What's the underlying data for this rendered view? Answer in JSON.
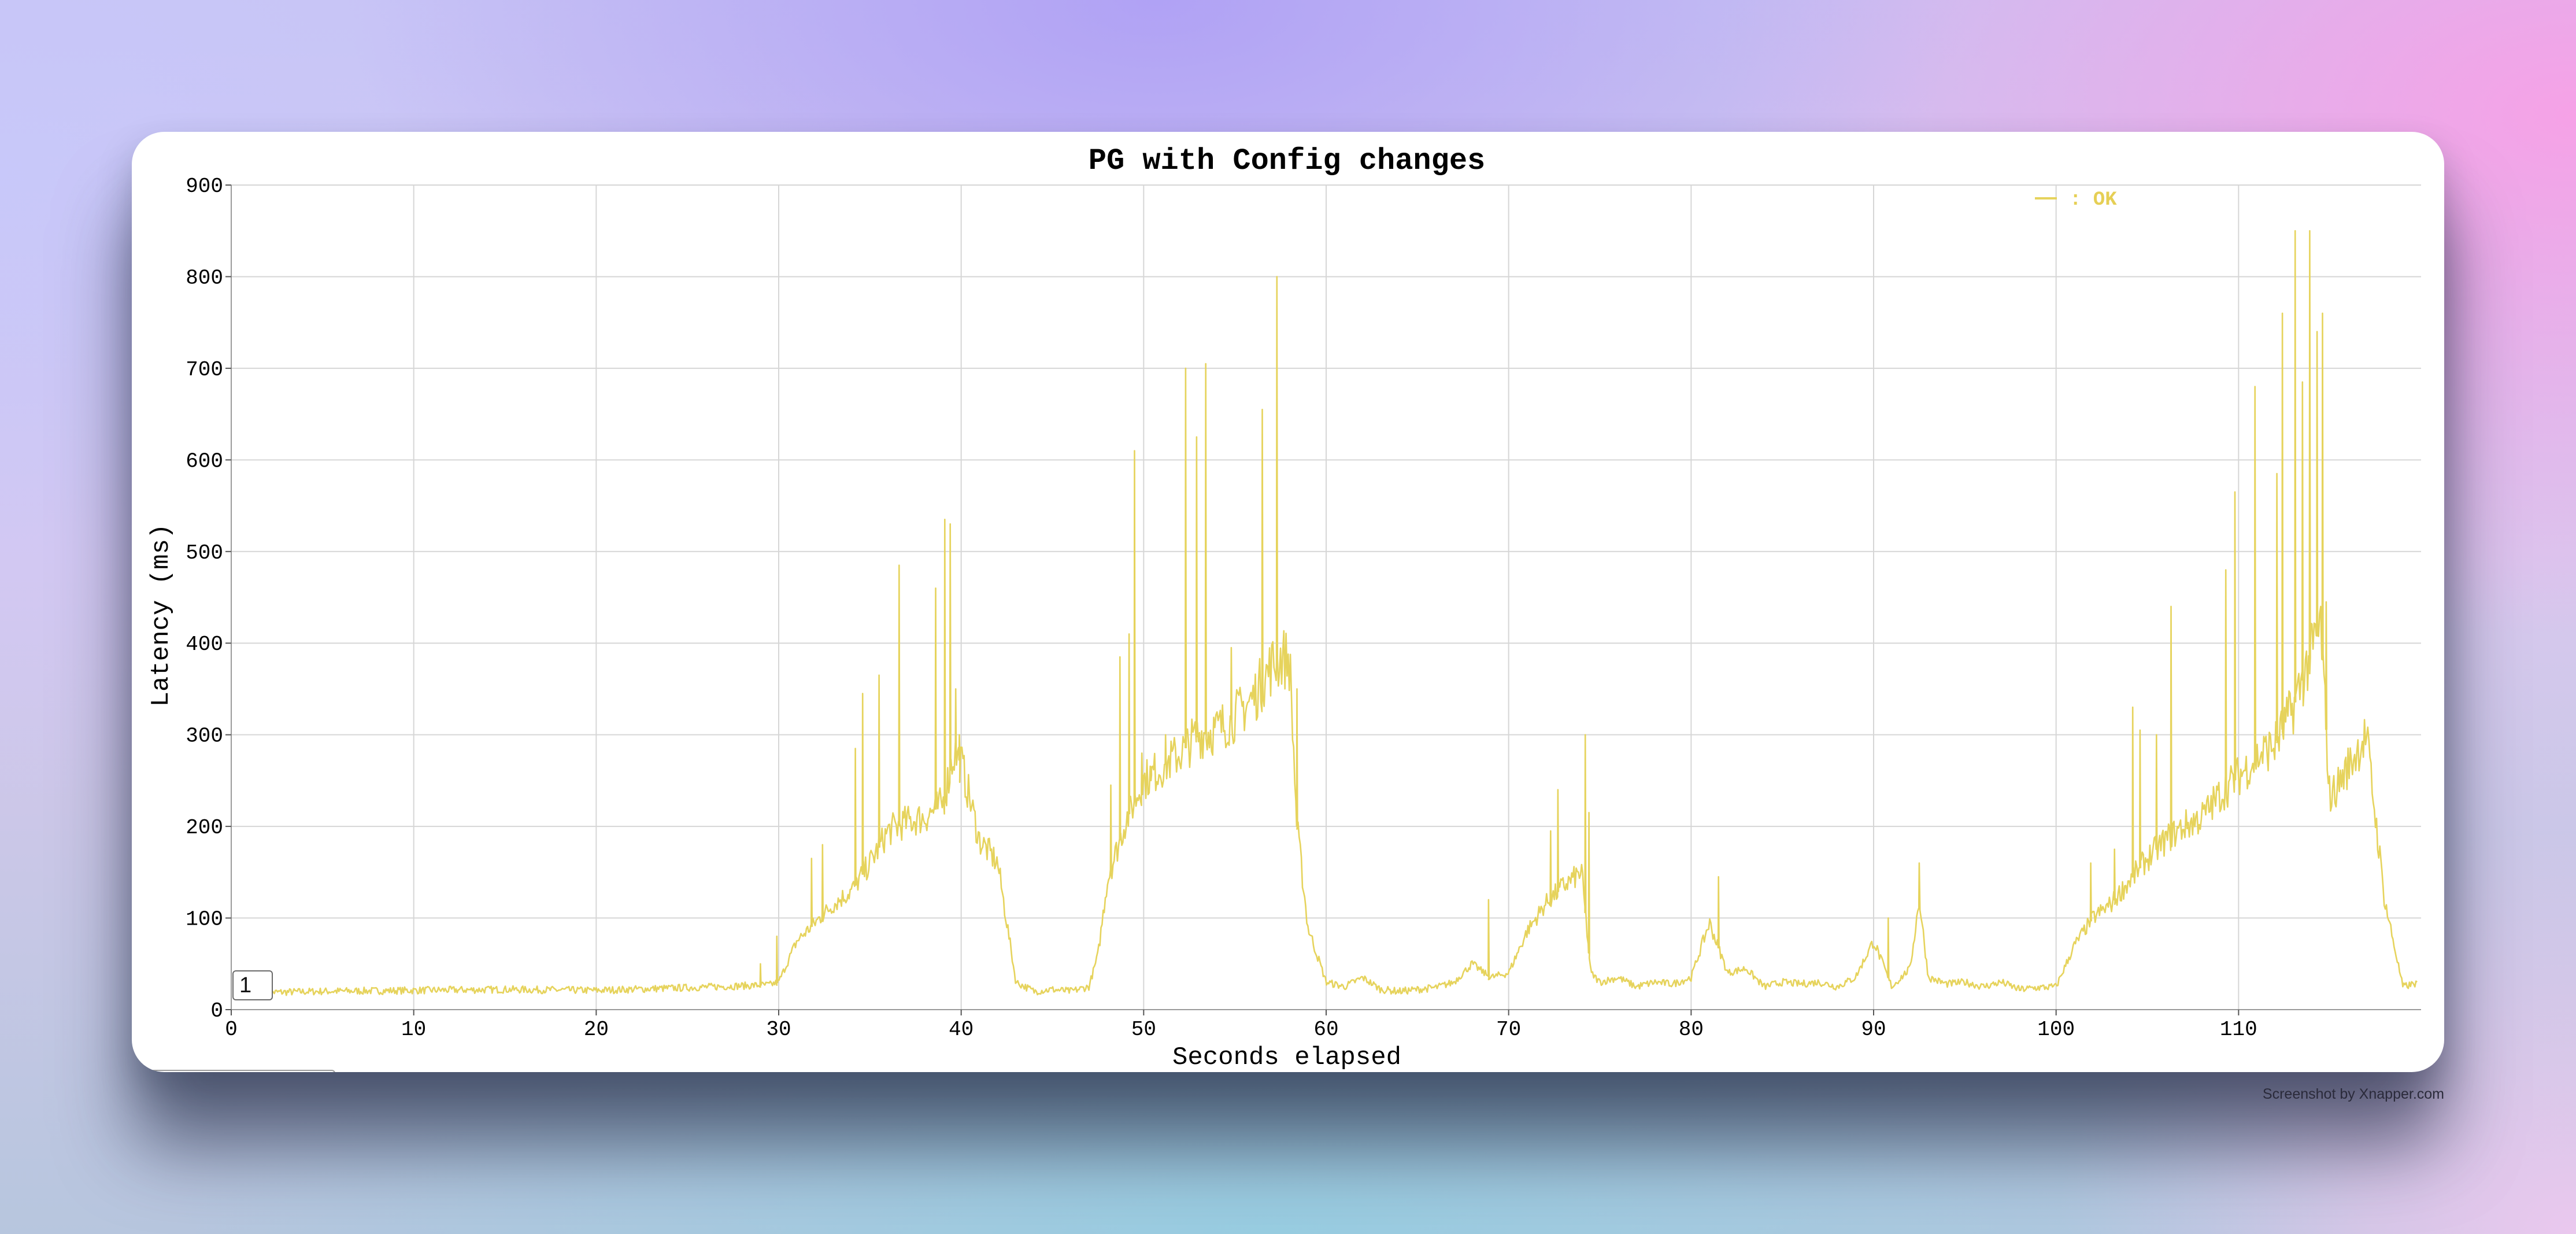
{
  "window": {
    "credit": "Screenshot by Xnapper.com"
  },
  "controls": {
    "box_value": "1"
  },
  "chart_data": {
    "type": "line",
    "title": "PG with Config changes",
    "xlabel": "Seconds elapsed",
    "ylabel": "Latency (ms)",
    "xlim": [
      0,
      120
    ],
    "ylim": [
      0,
      900
    ],
    "xticks": [
      0,
      10,
      20,
      30,
      40,
      50,
      60,
      70,
      80,
      90,
      100,
      110
    ],
    "yticks": [
      0,
      100,
      200,
      300,
      400,
      500,
      600,
      700,
      800,
      900
    ],
    "grid": true,
    "legend_position": "top-right",
    "series": [
      {
        "name": "OK",
        "color": "#e6d35c",
        "baseline": {
          "x": [
            0,
            5,
            10,
            15,
            20,
            25,
            28,
            29.5,
            30,
            31,
            32,
            33,
            34,
            35,
            36,
            37,
            38,
            39,
            39.6,
            40,
            41,
            42,
            43,
            44,
            45,
            46,
            47,
            47.5,
            48,
            49,
            50,
            51,
            52,
            53,
            54,
            55,
            56,
            57,
            57.6,
            58,
            58.4,
            59,
            60,
            61,
            62,
            63,
            64,
            65,
            66,
            67,
            68,
            69,
            70,
            71,
            72,
            73,
            74,
            74.5,
            75,
            76,
            77,
            78,
            79,
            80,
            81,
            82,
            83,
            84,
            85,
            86,
            87,
            88,
            89,
            90,
            91,
            92,
            92.5,
            93,
            94,
            95,
            96,
            97,
            98,
            99,
            100,
            101,
            102,
            103,
            104,
            105,
            106,
            107,
            108,
            109,
            110,
            111,
            112,
            113,
            114,
            114.5,
            115,
            116,
            117,
            118,
            119,
            120
          ],
          "y": [
            18,
            20,
            21,
            22,
            21,
            24,
            26,
            27,
            30,
            75,
            95,
            115,
            130,
            160,
            195,
            205,
            210,
            225,
            280,
            270,
            185,
            160,
            30,
            20,
            22,
            20,
            25,
            60,
            140,
            205,
            250,
            265,
            280,
            300,
            305,
            320,
            340,
            375,
            385,
            380,
            200,
            90,
            30,
            25,
            35,
            22,
            20,
            22,
            24,
            30,
            50,
            35,
            40,
            85,
            115,
            135,
            150,
            40,
            30,
            35,
            25,
            30,
            28,
            35,
            95,
            40,
            45,
            25,
            30,
            28,
            30,
            25,
            35,
            75,
            25,
            45,
            120,
            35,
            28,
            30,
            25,
            30,
            22,
            24,
            25,
            70,
            100,
            115,
            140,
            165,
            185,
            200,
            210,
            235,
            255,
            275,
            290,
            330,
            390,
            420,
            230,
            265,
            300,
            120,
            25,
            30
          ]
        },
        "spikes": {
          "x": [
            29,
            29.9,
            31.8,
            32.4,
            34.2,
            34.6,
            35.5,
            36.6,
            38.6,
            39.1,
            39.4,
            39.7,
            39.9,
            48.2,
            48.7,
            49.2,
            49.5,
            49.9,
            50.4,
            51.2,
            52.3,
            52.9,
            53.4,
            54.8,
            56.5,
            57.3,
            58.4,
            68.9,
            72.3,
            72.7,
            74.2,
            74.4,
            81.5,
            90.8,
            92.5,
            101.9,
            103.2,
            104.2,
            104.6,
            105.5,
            106.3,
            109.3,
            109.8,
            110.9,
            112.1,
            112.4,
            113.1,
            113.5,
            113.9,
            114.3,
            114.6,
            114.8
          ],
          "y": [
            50,
            80,
            165,
            180,
            285,
            345,
            365,
            485,
            460,
            535,
            530,
            350,
            300,
            245,
            385,
            410,
            610,
            280,
            250,
            300,
            700,
            625,
            705,
            395,
            655,
            800,
            350,
            120,
            195,
            240,
            300,
            215,
            145,
            100,
            160,
            160,
            175,
            330,
            305,
            300,
            440,
            480,
            565,
            680,
            585,
            760,
            850,
            685,
            850,
            740,
            760,
            445
          ]
        }
      }
    ]
  }
}
